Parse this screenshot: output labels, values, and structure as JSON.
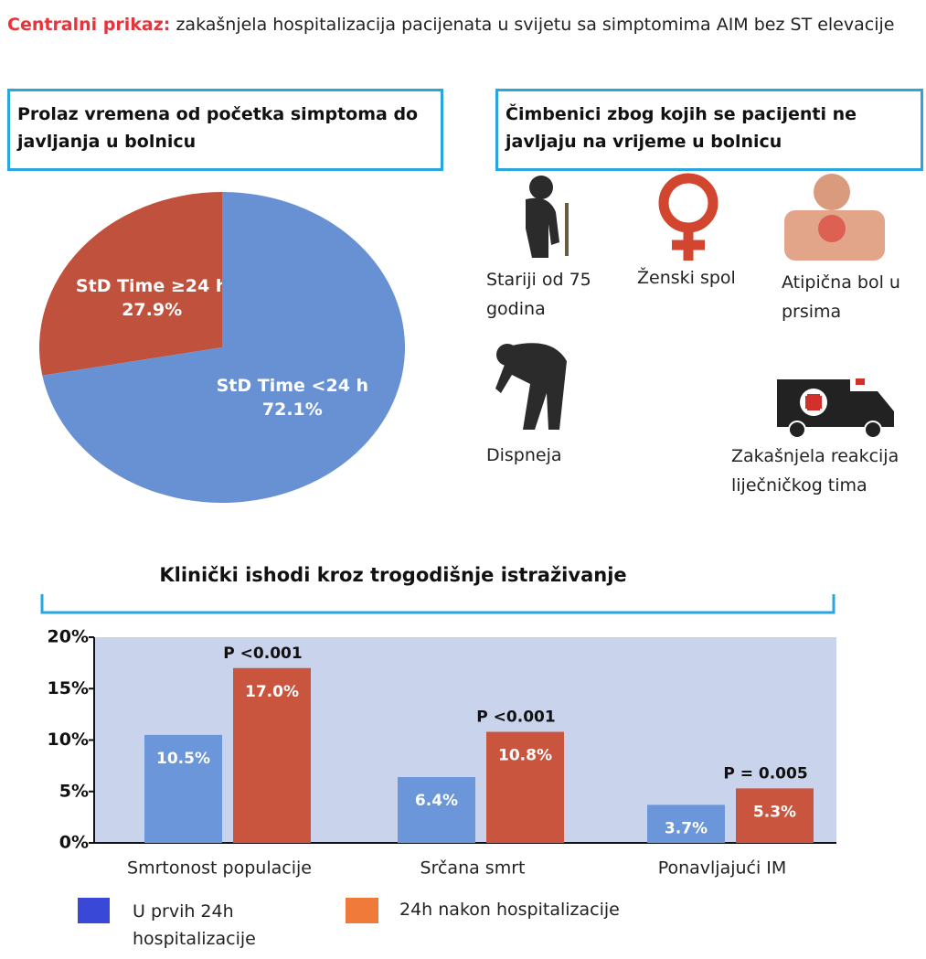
{
  "header": {
    "label": "Centralni prikaz:",
    "text": "zakašnjela hospitalizacija pacijenata u svijetu sa simptomima AIM bez ST elevacije"
  },
  "factors": {
    "title": "Čimbenici zbog kojih se pacijenti ne javljaju na vrijeme u bolnicu",
    "items": [
      "Stariji od 75 godina",
      "Ženski spol",
      "Atipična bol u prsima",
      "Dispneja",
      "Zakašnjela reakcija liječničkog tima"
    ]
  },
  "chart_data": [
    {
      "type": "pie",
      "title": "Prolaz vremena od početka simptoma do javljanja u bolnicu",
      "categories": [
        "StD Time ≥24 h",
        "StD Time <24 h"
      ],
      "values": [
        27.9,
        72.1
      ],
      "value_labels": [
        "27.9%",
        "72.1%"
      ],
      "colors": [
        "#c0513d",
        "#6791d3"
      ]
    },
    {
      "type": "bar",
      "title": "Klinički ishodi kroz trogodišnje istraživanje",
      "categories": [
        "Smrtonost populacije",
        "Srčana smrt",
        "Ponavljajući IM"
      ],
      "annotations": [
        "P <0.001",
        "P <0.001",
        "P = 0.005"
      ],
      "series": [
        {
          "name": "U prvih 24h hospitalizacije",
          "color": "#6b96d9",
          "legend_color": "#3a48d8",
          "values": [
            10.5,
            6.4,
            3.7
          ],
          "value_labels": [
            "10.5%",
            "6.4%",
            "3.7%"
          ]
        },
        {
          "name": "24h nakon hospitalizacije",
          "color": "#c9553f",
          "legend_color": "#f07a3a",
          "values": [
            17.0,
            10.8,
            5.3
          ],
          "value_labels": [
            "17.0%",
            "10.8%",
            "5.3%"
          ]
        }
      ],
      "ylim": [
        0,
        20
      ],
      "yticks": [
        {
          "value": 0,
          "label": "0%"
        },
        {
          "value": 5,
          "label": "5%"
        },
        {
          "value": 10,
          "label": "10%"
        },
        {
          "value": 15,
          "label": "15%"
        },
        {
          "value": 20,
          "label": "20%"
        }
      ],
      "plot_background": "#c9d3ec"
    }
  ]
}
